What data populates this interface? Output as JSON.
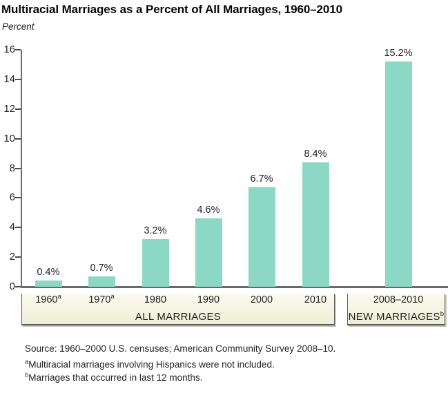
{
  "title": "Multiracial Marriages as a Percent of All Marriages, 1960–2010",
  "chart_data": {
    "type": "bar",
    "title": "Multiracial Marriages as a Percent of All Marriages, 1960–2010",
    "unit_label": "Percent",
    "xlabel": "",
    "ylabel": "Percent",
    "ylim": [
      0,
      16
    ],
    "yticks": [
      0,
      2,
      4,
      6,
      8,
      10,
      12,
      14,
      16
    ],
    "grid": false,
    "legend": "none",
    "bar_color": "#8dd7c5",
    "categories": [
      "1960",
      "1970",
      "1980",
      "1990",
      "2000",
      "2010",
      "2008–2010"
    ],
    "category_superscripts": [
      "a",
      "a",
      "",
      "",
      "",
      "",
      ""
    ],
    "values": [
      0.4,
      0.7,
      3.2,
      4.6,
      6.7,
      8.4,
      15.2
    ],
    "value_labels": [
      "0.4%",
      "0.7%",
      "3.2%",
      "4.6%",
      "6.7%",
      "8.4%",
      "15.2%"
    ],
    "group_boxes": [
      {
        "label": "ALL MARRIAGES",
        "sup": "",
        "span": [
          0,
          5
        ]
      },
      {
        "label": "NEW MARRIAGES",
        "sup": "b",
        "span": [
          6,
          6
        ]
      }
    ]
  },
  "footer": {
    "source": "Source: 1960–2000 U.S. censuses; American Community Survey 2008–10.",
    "footnote_a": {
      "marker": "a",
      "text": "Multiracial marriages involving Hispanics were not included."
    },
    "footnote_b": {
      "marker": "b",
      "text": "Marriages that occurred in last 12 months."
    }
  }
}
